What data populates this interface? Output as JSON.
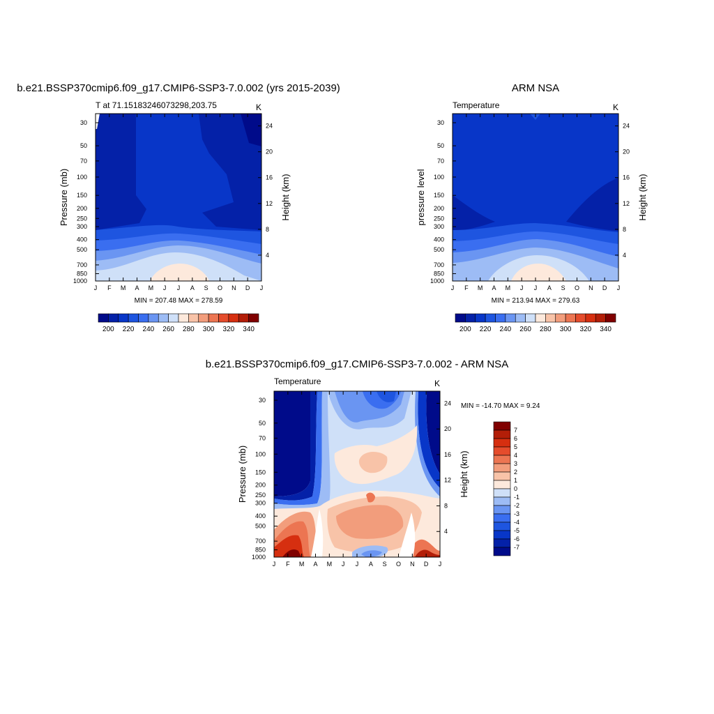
{
  "panels": [
    {
      "id": "model",
      "title": "b.e21.BSSP370cmip6.f09_g17.CMIP6-SSP3-7.0.002 (yrs 2015-2039)",
      "subtitle": "T at 71.15183246073298,203.75",
      "units": "K",
      "stats": "MIN = 207.48 MAX = 278.59",
      "ylabel_left": "Pressure (mb)",
      "ylabel_right": "Height (km)"
    },
    {
      "id": "obs",
      "title": "ARM NSA",
      "subtitle": "Temperature",
      "units": "K",
      "stats": "MIN = 213.94 MAX = 279.63",
      "ylabel_left": "pressure level",
      "ylabel_right": "Height (km)"
    },
    {
      "id": "diff",
      "title": "b.e21.BSSP370cmip6.f09_g17.CMIP6-SSP3-7.0.002 - ARM NSA",
      "subtitle": "Temperature",
      "units": "K",
      "stats": "MIN = -14.70 MAX =   9.24",
      "ylabel_left": "Pressure (mb)",
      "ylabel_right": "Height (km)"
    }
  ],
  "chart_data": [
    {
      "type": "heatmap",
      "x_ticks": [
        "J",
        "F",
        "M",
        "A",
        "M",
        "J",
        "J",
        "A",
        "S",
        "O",
        "N",
        "D",
        "J"
      ],
      "y_ticks_pressure": [
        "30",
        "50",
        "70",
        "100",
        "150",
        "200",
        "250",
        "300",
        "400",
        "500",
        "700",
        "850",
        "1000"
      ],
      "y_ticks_height": [
        "24",
        "20",
        "16",
        "12",
        "8",
        "4"
      ],
      "y_scale": "log pressure, reversed",
      "colorbar_ticks": [
        "200",
        "220",
        "240",
        "260",
        "280",
        "300",
        "320",
        "340"
      ],
      "colorbar_colors": [
        "#000b8a",
        "#0421a8",
        "#0836c8",
        "#1e55e0",
        "#3a6ef0",
        "#6a95f2",
        "#9dbcf5",
        "#cfe0f8",
        "#fde9dc",
        "#f8c3a8",
        "#f29d7c",
        "#ec7552",
        "#e54c2c",
        "#d62f10",
        "#b31e08",
        "#800000"
      ],
      "colorbar_orientation": "horizontal"
    },
    {
      "type": "heatmap",
      "x_ticks": [
        "J",
        "F",
        "M",
        "A",
        "M",
        "J",
        "J",
        "A",
        "S",
        "O",
        "N",
        "D",
        "J"
      ],
      "y_ticks_pressure": [
        "30",
        "50",
        "70",
        "100",
        "150",
        "200",
        "250",
        "300",
        "400",
        "500",
        "700",
        "850",
        "1000"
      ],
      "y_ticks_height": [
        "24",
        "20",
        "16",
        "12",
        "8",
        "4"
      ],
      "y_scale": "log pressure, reversed",
      "colorbar_ticks": [
        "200",
        "220",
        "240",
        "260",
        "280",
        "300",
        "320",
        "340"
      ],
      "colorbar_colors": [
        "#000b8a",
        "#0421a8",
        "#0836c8",
        "#1e55e0",
        "#3a6ef0",
        "#6a95f2",
        "#9dbcf5",
        "#cfe0f8",
        "#fde9dc",
        "#f8c3a8",
        "#f29d7c",
        "#ec7552",
        "#e54c2c",
        "#d62f10",
        "#b31e08",
        "#800000"
      ],
      "colorbar_orientation": "horizontal"
    },
    {
      "type": "heatmap",
      "x_ticks": [
        "J",
        "F",
        "M",
        "A",
        "M",
        "J",
        "J",
        "A",
        "S",
        "O",
        "N",
        "D",
        "J"
      ],
      "y_ticks_pressure": [
        "30",
        "50",
        "70",
        "100",
        "150",
        "200",
        "250",
        "300",
        "400",
        "500",
        "700",
        "850",
        "1000"
      ],
      "y_ticks_height": [
        "24",
        "20",
        "16",
        "12",
        "8",
        "4"
      ],
      "y_scale": "log pressure, reversed",
      "colorbar_ticks": [
        "7",
        "6",
        "5",
        "4",
        "3",
        "2",
        "1",
        "0",
        "-1",
        "-2",
        "-3",
        "-4",
        "-5",
        "-6",
        "-7"
      ],
      "colorbar_colors": [
        "#800000",
        "#b31e08",
        "#d62f10",
        "#e54c2c",
        "#ec7552",
        "#f29d7c",
        "#f8c3a8",
        "#fde9dc",
        "#cfe0f8",
        "#9dbcf5",
        "#6a95f2",
        "#3a6ef0",
        "#1e55e0",
        "#0836c8",
        "#0421a8",
        "#000b8a"
      ],
      "colorbar_orientation": "vertical"
    }
  ]
}
